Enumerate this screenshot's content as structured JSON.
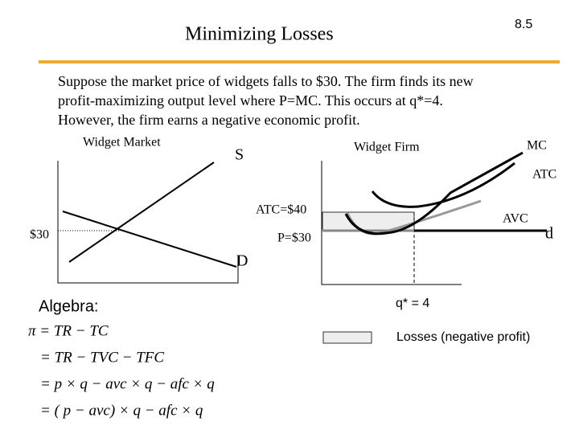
{
  "slide_number": "8.5",
  "title": "Minimizing Losses",
  "paragraph": [
    "Suppose the market price of widgets falls to $30. The firm finds its new",
    "profit-maximizing output level where P=MC.  This occurs at q*=4.",
    "However, the firm earns a negative economic profit."
  ],
  "market": {
    "title": "Widget Market",
    "supply_label": "S",
    "demand_label": "D",
    "price_label": "$30"
  },
  "firm": {
    "title": "Widget Firm",
    "mc_label": "MC",
    "atc_label": "ATC",
    "avc_label": "AVC",
    "demand_label": "d",
    "atc_value_label": "ATC=$40",
    "price_label": "P=$30",
    "quantity_label": "q* = 4"
  },
  "legend": {
    "label": "Losses (negative profit)"
  },
  "algebra": {
    "heading": "Algebra:",
    "lines": [
      "π = TR − TC",
      "= TR − TVC − TFC",
      "= p × q − avc × q − afc × q",
      "= ( p − avc) × q − afc × q"
    ]
  }
}
